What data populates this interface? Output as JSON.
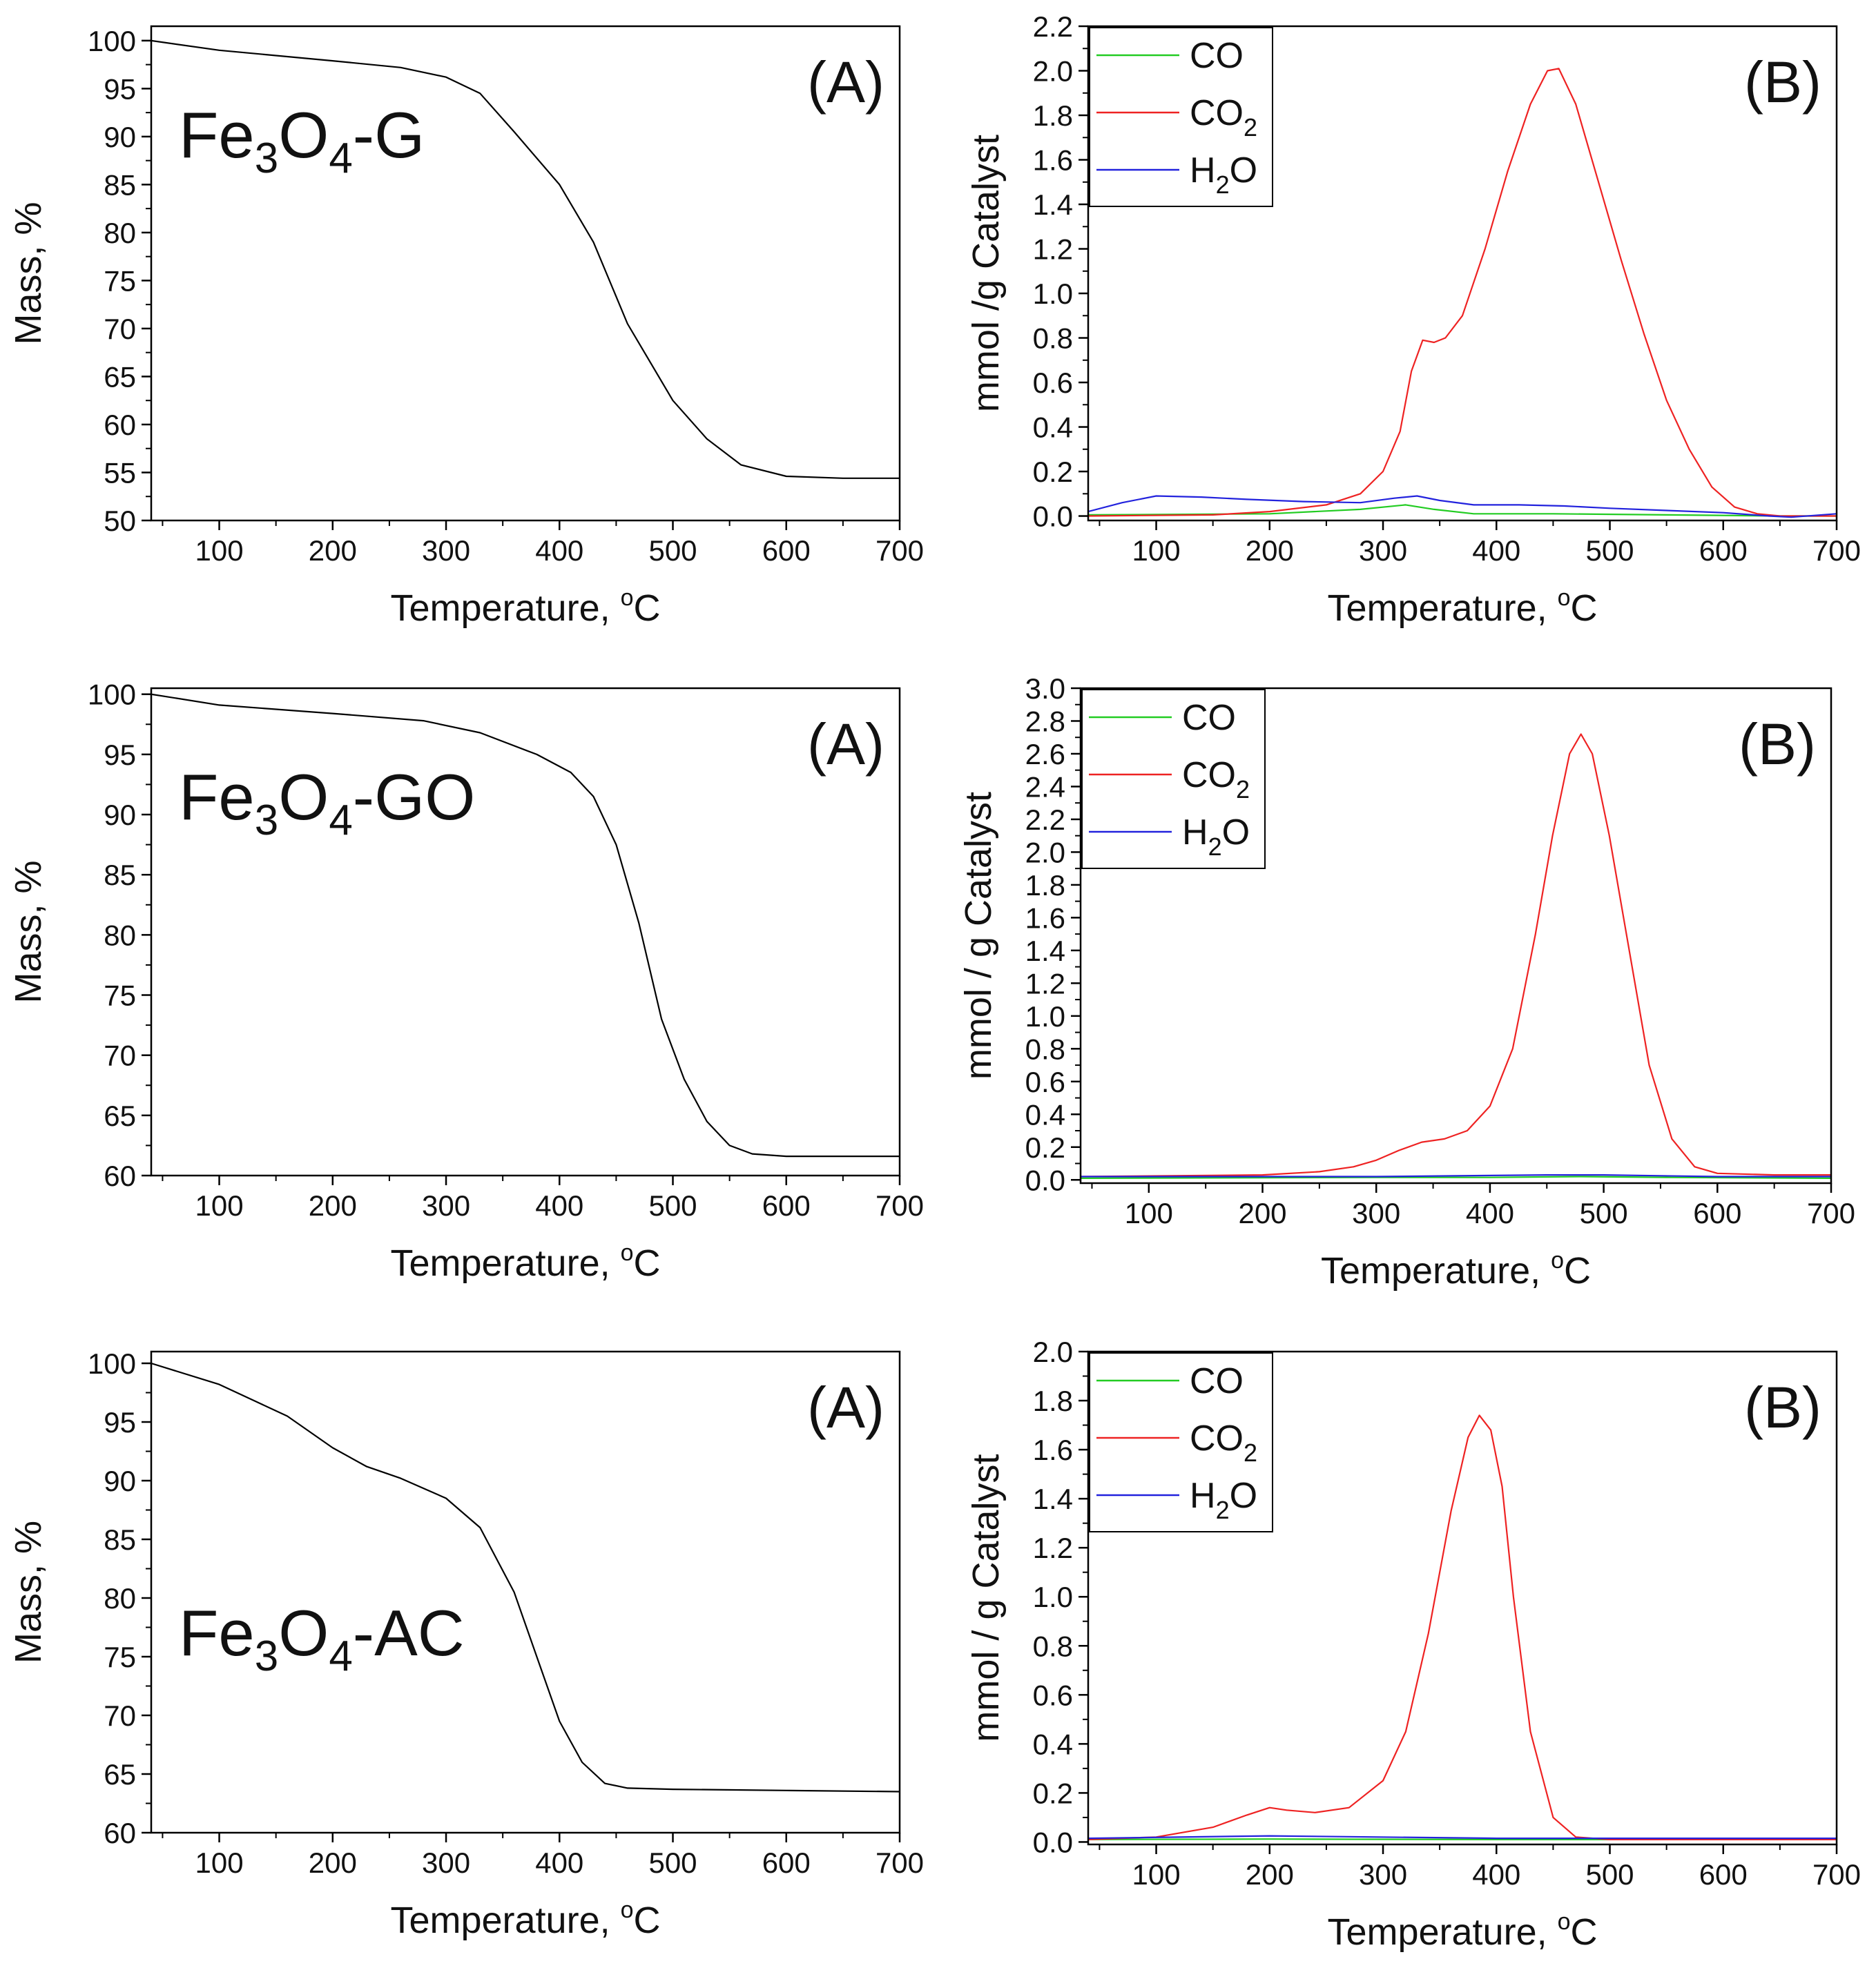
{
  "figure": {
    "colors": {
      "axis": "#000000",
      "tga": "#000000",
      "CO": "#22cc22",
      "CO2": "#ee2222",
      "H2O": "#2222dd",
      "background": "#ffffff"
    }
  },
  "chart_data": [
    {
      "id": "r0a",
      "type": "line",
      "panel_label": "(A)",
      "sample": {
        "base": "Fe",
        "sub1": "3",
        "mid": "O",
        "sub2": "4",
        "suffix": "-G"
      },
      "xlabel": "Temperature, ",
      "xunit_sup": "o",
      "xunit": "C",
      "ylabel": "Mass, %",
      "xlim": [
        40,
        700
      ],
      "ylim": [
        50,
        101.5
      ],
      "xticks": [
        100,
        200,
        300,
        400,
        500,
        600,
        700
      ],
      "yticks": [
        50,
        55,
        60,
        65,
        70,
        75,
        80,
        85,
        90,
        95,
        100
      ],
      "ytick_decimals": 0,
      "series": [
        {
          "name": "TGA",
          "color": "#000000",
          "x": [
            40,
            100,
            200,
            260,
            300,
            330,
            360,
            400,
            430,
            460,
            500,
            530,
            560,
            600,
            650,
            700
          ],
          "y": [
            100,
            99,
            97.9,
            97.2,
            96.2,
            94.5,
            90.5,
            85,
            79,
            70.5,
            62.5,
            58.5,
            55.8,
            54.6,
            54.4,
            54.4
          ]
        }
      ]
    },
    {
      "id": "r0b",
      "type": "line",
      "panel_label": "(B)",
      "xlabel": "Temperature, ",
      "xunit_sup": "o",
      "xunit": "C",
      "ylabel": "mmol /g Catalyst",
      "xlim": [
        40,
        700
      ],
      "ylim": [
        -0.02,
        2.2
      ],
      "xticks": [
        100,
        200,
        300,
        400,
        500,
        600,
        700
      ],
      "yticks": [
        0.0,
        0.2,
        0.4,
        0.6,
        0.8,
        1.0,
        1.2,
        1.4,
        1.6,
        1.8,
        2.0,
        2.2
      ],
      "ytick_decimals": 1,
      "legend": [
        {
          "key": "CO",
          "base": "CO",
          "sub": "",
          "tail": "",
          "color": "#22cc22"
        },
        {
          "key": "CO2",
          "base": "CO",
          "sub": "2",
          "tail": "",
          "color": "#ee2222"
        },
        {
          "key": "H2O",
          "base": "H",
          "sub": "2",
          "tail": "O",
          "color": "#2222dd"
        }
      ],
      "series": [
        {
          "name": "CO",
          "color": "#22cc22",
          "x": [
            40,
            200,
            280,
            320,
            345,
            380,
            450,
            550,
            650,
            700
          ],
          "y": [
            0.005,
            0.01,
            0.03,
            0.05,
            0.03,
            0.01,
            0.01,
            0.005,
            0.0,
            0.0
          ]
        },
        {
          "name": "CO2",
          "color": "#ee2222",
          "x": [
            40,
            150,
            200,
            250,
            280,
            300,
            315,
            325,
            335,
            345,
            355,
            370,
            390,
            410,
            430,
            445,
            455,
            470,
            490,
            510,
            530,
            550,
            570,
            590,
            610,
            630,
            650,
            700
          ],
          "y": [
            0.0,
            0.005,
            0.02,
            0.05,
            0.1,
            0.2,
            0.38,
            0.65,
            0.79,
            0.78,
            0.8,
            0.9,
            1.2,
            1.55,
            1.85,
            2.0,
            2.01,
            1.85,
            1.5,
            1.15,
            0.82,
            0.52,
            0.3,
            0.13,
            0.04,
            0.01,
            0.0,
            0.0
          ]
        },
        {
          "name": "H2O",
          "color": "#2222dd",
          "x": [
            40,
            70,
            100,
            140,
            180,
            230,
            280,
            310,
            330,
            350,
            380,
            420,
            460,
            500,
            550,
            600,
            640,
            660,
            700
          ],
          "y": [
            0.02,
            0.06,
            0.09,
            0.085,
            0.075,
            0.065,
            0.06,
            0.08,
            0.09,
            0.07,
            0.05,
            0.05,
            0.045,
            0.035,
            0.025,
            0.015,
            0.0,
            -0.005,
            0.01
          ]
        }
      ]
    },
    {
      "id": "r1a",
      "type": "line",
      "panel_label": "(A)",
      "sample": {
        "base": "Fe",
        "sub1": "3",
        "mid": "O",
        "sub2": "4",
        "suffix": "-GO"
      },
      "xlabel": "Temperature, ",
      "xunit_sup": "o",
      "xunit": "C",
      "ylabel": "Mass, %",
      "xlim": [
        40,
        700
      ],
      "ylim": [
        60,
        100.5
      ],
      "xticks": [
        100,
        200,
        300,
        400,
        500,
        600,
        700
      ],
      "yticks": [
        60,
        65,
        70,
        75,
        80,
        85,
        90,
        95,
        100
      ],
      "ytick_decimals": 0,
      "series": [
        {
          "name": "TGA",
          "color": "#000000",
          "x": [
            40,
            100,
            200,
            280,
            330,
            380,
            410,
            430,
            450,
            470,
            490,
            510,
            530,
            550,
            570,
            600,
            650,
            700
          ],
          "y": [
            100,
            99.1,
            98.4,
            97.8,
            96.8,
            95,
            93.5,
            91.5,
            87.5,
            81,
            73,
            68,
            64.5,
            62.5,
            61.8,
            61.6,
            61.6,
            61.6
          ]
        }
      ]
    },
    {
      "id": "r1b",
      "type": "line",
      "panel_label": "(B)",
      "xlabel": "Temperature, ",
      "xunit_sup": "o",
      "xunit": "C",
      "ylabel": "mmol / g Catalyst",
      "xlim": [
        40,
        700
      ],
      "ylim": [
        -0.02,
        3.0
      ],
      "xticks": [
        100,
        200,
        300,
        400,
        500,
        600,
        700
      ],
      "yticks": [
        0.0,
        0.2,
        0.4,
        0.6,
        0.8,
        1.0,
        1.2,
        1.4,
        1.6,
        1.8,
        2.0,
        2.2,
        2.4,
        2.6,
        2.8,
        3.0
      ],
      "ytick_decimals": 1,
      "legend": [
        {
          "key": "CO",
          "base": "CO",
          "sub": "",
          "tail": "",
          "color": "#22cc22"
        },
        {
          "key": "CO2",
          "base": "CO",
          "sub": "2",
          "tail": "",
          "color": "#ee2222"
        },
        {
          "key": "H2O",
          "base": "H",
          "sub": "2",
          "tail": "O",
          "color": "#2222dd"
        }
      ],
      "series": [
        {
          "name": "CO",
          "color": "#22cc22",
          "x": [
            40,
            300,
            400,
            480,
            560,
            700
          ],
          "y": [
            0.01,
            0.015,
            0.015,
            0.02,
            0.015,
            0.01
          ]
        },
        {
          "name": "CO2",
          "color": "#ee2222",
          "x": [
            40,
            200,
            250,
            280,
            300,
            320,
            340,
            360,
            380,
            400,
            420,
            440,
            455,
            470,
            480,
            490,
            505,
            520,
            540,
            560,
            580,
            600,
            650,
            700
          ],
          "y": [
            0.02,
            0.03,
            0.05,
            0.08,
            0.12,
            0.18,
            0.23,
            0.25,
            0.3,
            0.45,
            0.8,
            1.5,
            2.1,
            2.6,
            2.72,
            2.6,
            2.1,
            1.5,
            0.7,
            0.25,
            0.08,
            0.04,
            0.03,
            0.03
          ]
        },
        {
          "name": "H2O",
          "color": "#2222dd",
          "x": [
            40,
            300,
            450,
            500,
            600,
            700
          ],
          "y": [
            0.02,
            0.02,
            0.03,
            0.03,
            0.02,
            0.02
          ]
        }
      ]
    },
    {
      "id": "r2a",
      "type": "line",
      "panel_label": "(A)",
      "sample": {
        "base": "Fe",
        "sub1": "3",
        "mid": "O",
        "sub2": "4",
        "suffix": "-AC"
      },
      "xlabel": "Temperature, ",
      "xunit_sup": "o",
      "xunit": "C",
      "ylabel": "Mass, %",
      "xlim": [
        40,
        700
      ],
      "ylim": [
        60,
        101
      ],
      "xticks": [
        100,
        200,
        300,
        400,
        500,
        600,
        700
      ],
      "yticks": [
        60,
        65,
        70,
        75,
        80,
        85,
        90,
        95,
        100
      ],
      "ytick_decimals": 0,
      "series": [
        {
          "name": "TGA",
          "color": "#000000",
          "x": [
            40,
            100,
            160,
            200,
            230,
            260,
            300,
            330,
            360,
            380,
            400,
            420,
            440,
            460,
            500,
            600,
            700
          ],
          "y": [
            100,
            98.2,
            95.5,
            92.8,
            91.2,
            90.2,
            88.5,
            86,
            80.5,
            75,
            69.5,
            66,
            64.2,
            63.8,
            63.7,
            63.6,
            63.5
          ]
        }
      ]
    },
    {
      "id": "r2b",
      "type": "line",
      "panel_label": "(B)",
      "xlabel": "Temperature, ",
      "xunit_sup": "o",
      "xunit": "C",
      "ylabel": "mmol / g Catalyst",
      "xlim": [
        40,
        700
      ],
      "ylim": [
        -0.01,
        2.0
      ],
      "xticks": [
        100,
        200,
        300,
        400,
        500,
        600,
        700
      ],
      "yticks": [
        0.0,
        0.2,
        0.4,
        0.6,
        0.8,
        1.0,
        1.2,
        1.4,
        1.6,
        1.8,
        2.0
      ],
      "ytick_decimals": 1,
      "legend": [
        {
          "key": "CO",
          "base": "CO",
          "sub": "",
          "tail": "",
          "color": "#22cc22"
        },
        {
          "key": "CO2",
          "base": "CO",
          "sub": "2",
          "tail": "",
          "color": "#ee2222"
        },
        {
          "key": "H2O",
          "base": "H",
          "sub": "2",
          "tail": "O",
          "color": "#2222dd"
        }
      ],
      "series": [
        {
          "name": "CO",
          "color": "#22cc22",
          "x": [
            40,
            200,
            400,
            700
          ],
          "y": [
            0.01,
            0.012,
            0.01,
            0.01
          ]
        },
        {
          "name": "CO2",
          "color": "#ee2222",
          "x": [
            40,
            100,
            150,
            180,
            200,
            215,
            240,
            270,
            300,
            320,
            340,
            360,
            375,
            385,
            395,
            405,
            415,
            430,
            450,
            470,
            500,
            700
          ],
          "y": [
            0.01,
            0.02,
            0.06,
            0.11,
            0.14,
            0.13,
            0.12,
            0.14,
            0.25,
            0.45,
            0.85,
            1.35,
            1.65,
            1.74,
            1.68,
            1.45,
            1.0,
            0.45,
            0.1,
            0.02,
            0.01,
            0.01
          ]
        },
        {
          "name": "H2O",
          "color": "#2222dd",
          "x": [
            40,
            200,
            400,
            700
          ],
          "y": [
            0.015,
            0.025,
            0.015,
            0.015
          ]
        }
      ]
    }
  ]
}
